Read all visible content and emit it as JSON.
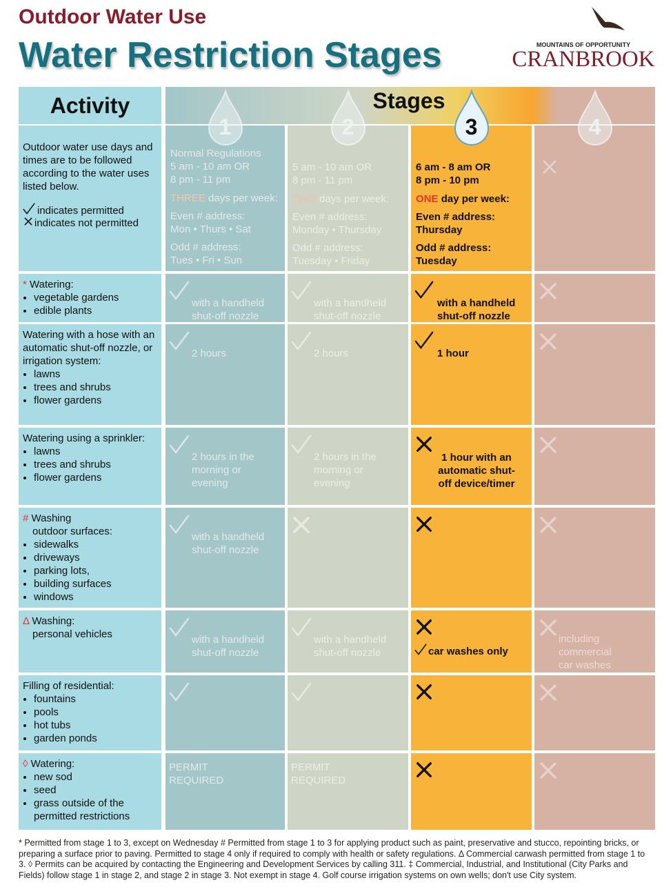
{
  "header": {
    "subtitle": "Outdoor Water Use",
    "title": "Water Restriction Stages",
    "logo_tagline": "MOUNTAINS OF OPPORTUNITY",
    "logo_name": "CRANBROOK"
  },
  "table": {
    "activity_header": "Activity",
    "stages_header": "Stages",
    "stages": [
      "1",
      "2",
      "3",
      "4"
    ],
    "intro": {
      "text": "Outdoor water use days and times are to be followed according to the water uses listed below.",
      "permitted": "indicates permitted",
      "not_permitted": "indicates not permitted"
    },
    "schedule": [
      {
        "hours": "Normal Regulations\n5 am - 10 am OR\n8 pm - 11 pm",
        "count": "THREE",
        "count_suffix": "days per week:",
        "even_label": "Even # address:",
        "even_days": "Mon • Thurs • Sat",
        "odd_label": "Odd # address:",
        "odd_days": "Tues • Fri • Sun"
      },
      {
        "hours": "5 am - 10 am OR\n8 pm - 11 pm",
        "count": "TWO",
        "count_suffix": "days per week:",
        "even_label": "Even # address:",
        "even_days": "Monday • Thursday",
        "odd_label": "Odd # address:",
        "odd_days": "Tuesday • Friday"
      },
      {
        "hours": "6 am - 8 am OR\n8 pm - 10 pm",
        "count": "ONE",
        "count_suffix": "day per week:",
        "even_label": "Even # address:",
        "even_days": "Thursday",
        "odd_label": "Odd # address:",
        "odd_days": "Tuesday"
      }
    ],
    "rows": [
      {
        "marker": "*",
        "activity": "Watering:",
        "items": [
          "vegetable gardens",
          "edible plants"
        ],
        "cells": {
          "1": "with a handheld\nshut-off nozzle",
          "2": "with a handheld\nshut-off nozzle",
          "3": "with a handheld\nshut-off nozzle"
        }
      },
      {
        "activity": "Watering with a hose with an automatic shut-off nozzle, or irrigation system:",
        "items": [
          "lawns",
          "trees and shrubs",
          "flower gardens"
        ],
        "cells": {
          "1": "2 hours",
          "2": "2 hours",
          "3": "1 hour"
        }
      },
      {
        "activity": "Watering using a sprinkler:",
        "items": [
          "lawns",
          "trees and shrubs",
          "flower gardens"
        ],
        "cells": {
          "1": "2 hours in the\nmorning or\nevening",
          "2": "2 hours in the\nmorning or\nevening",
          "3": "1 hour with an\nautomatic shut-\noff device/timer"
        }
      },
      {
        "marker": "#",
        "activity": "Washing",
        "detail": "outdoor surfaces:",
        "items": [
          "sidewalks",
          "driveways",
          "parking lots,",
          "building surfaces",
          "windows"
        ],
        "cells": {
          "1": "with a handheld\nshut-off nozzle"
        }
      },
      {
        "marker": "Δ",
        "activity": "Washing:",
        "detail": "personal vehicles",
        "cells": {
          "1": "with a handheld\nshut-off nozzle",
          "2": "with a handheld\nshut-off nozzle",
          "3": "car washes only",
          "4": "including\ncommercial\ncar washes"
        }
      },
      {
        "activity": "Filling of residential:",
        "items": [
          "fountains",
          "pools",
          "hot tubs",
          "garden ponds"
        ]
      },
      {
        "marker": "◊",
        "activity": "Watering:",
        "items": [
          "new sod",
          "seed",
          "grass outside of the\npermitted restrictions"
        ],
        "cells": {
          "1": "PERMIT\nREQUIRED",
          "2": "PERMIT\nREQUIRED"
        }
      }
    ]
  },
  "footnote": "* Permitted from stage 1 to 3, except on Wednesday # Permitted from stage 1 to 3 for applying product such as paint, preservative and stucco, repointing bricks, or preparing a surface prior to paving. Permitted to stage 4 only if required to comply with health or safety regulations. Δ Commercial carwash permitted from stage 1 to 3. ◊ Permits can be acquired by contacting the Engineering and Development Services by calling 311. ‡ Commercial, Industrial, and Institutional (City Parks and Fields) follow stage 1 in stage 2, and stage 2 in stage 3. Not exempt in stage 4. Golf course irrigation systems on own wells; don't use City system."
}
